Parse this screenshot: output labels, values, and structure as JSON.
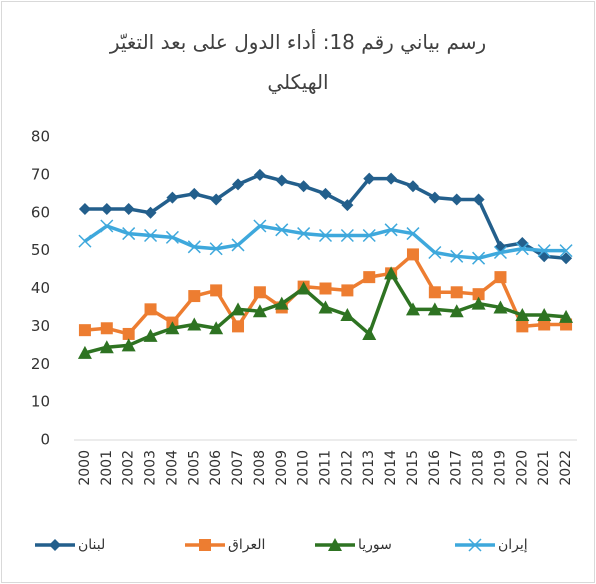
{
  "chart_data": {
    "type": "line",
    "title": "رسم بياني رقم 18: أداء الدول على بعد التغيّر الهيكلي",
    "categories": [
      "2000",
      "2001",
      "2002",
      "2003",
      "2004",
      "2005",
      "2006",
      "2007",
      "2008",
      "2009",
      "2010",
      "2011",
      "2012",
      "2013",
      "2014",
      "2015",
      "2016",
      "2017",
      "2018",
      "2019",
      "2020",
      "2021",
      "2022"
    ],
    "series": [
      {
        "name": "لبنان",
        "color": "#235f8c",
        "marker": "diamond",
        "values": [
          61,
          61,
          61,
          60,
          64,
          65,
          63.5,
          67.5,
          70,
          68.5,
          67,
          65,
          62,
          69,
          69,
          67,
          64,
          63.5,
          63.5,
          51,
          52,
          48.5,
          48
        ]
      },
      {
        "name": "العراق",
        "color": "#ed7d31",
        "marker": "square",
        "values": [
          29,
          29.5,
          28,
          34.5,
          31,
          38,
          39.5,
          30,
          39,
          35,
          40.5,
          40,
          39.5,
          43,
          44,
          49,
          39,
          39,
          38.5,
          43,
          30,
          30.5,
          30.5
        ]
      },
      {
        "name": "سوريا",
        "color": "#2e7322",
        "marker": "triangle",
        "values": [
          23,
          24.5,
          25,
          27.5,
          29.5,
          30.5,
          29.5,
          34.5,
          34,
          36,
          40,
          35,
          33,
          28,
          44,
          34.5,
          34.5,
          34,
          36,
          35,
          33,
          33,
          32.5
        ]
      },
      {
        "name": "إيران",
        "color": "#3ea8dc",
        "marker": "x",
        "values": [
          52.5,
          56.5,
          54.5,
          54,
          53.5,
          51,
          50.5,
          51.5,
          56.5,
          55.5,
          54.5,
          54,
          54,
          54,
          55.5,
          54.5,
          49.5,
          48.5,
          48,
          49.5,
          50.5,
          50,
          50
        ]
      }
    ],
    "ylim": [
      0,
      80
    ],
    "yticks": [
      0,
      10,
      20,
      30,
      40,
      50,
      60,
      70,
      80
    ],
    "legend": "bottom"
  }
}
